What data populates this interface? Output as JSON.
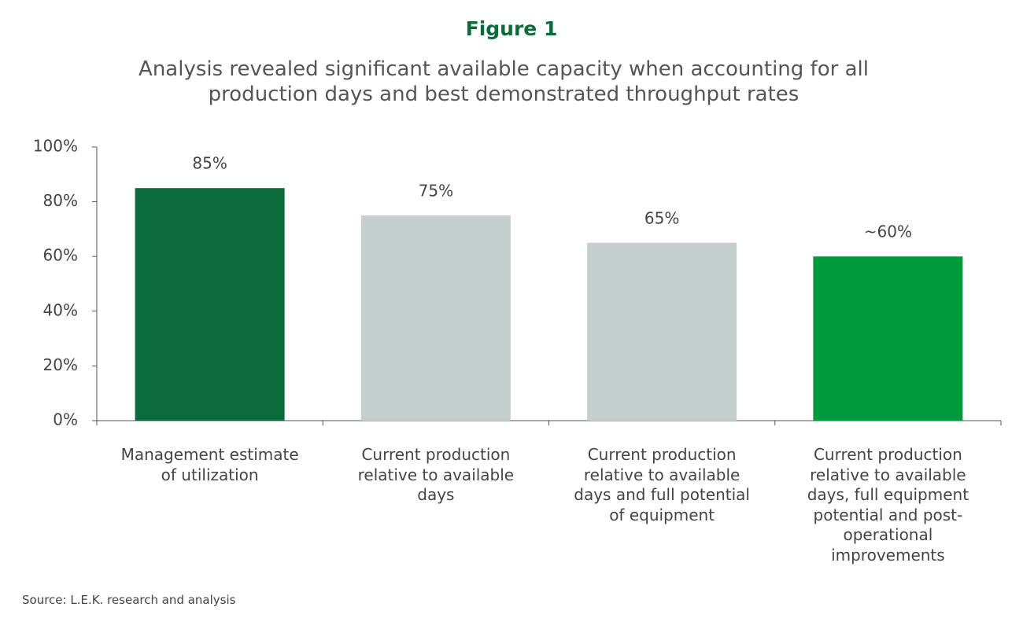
{
  "chart_data": {
    "type": "bar",
    "title": "Figure 1",
    "subtitle": "Analysis revealed significant available capacity when accounting for all production days and best demonstrated throughput rates",
    "categories": [
      "Management estimate of utilization",
      "Current production relative to available days",
      "Current production relative to available days and full potential of equipment",
      "Current production relative to available days, full equipment potential and post-operational improvements"
    ],
    "values": [
      85,
      75,
      65,
      60
    ],
    "value_labels": [
      "85%",
      "75%",
      "65%",
      "~60%"
    ],
    "colors": [
      "#0b6b3a",
      "#c5cfcd",
      "#c5cfcd",
      "#009a3c"
    ],
    "ylim": [
      0,
      100
    ],
    "yticks": [
      {
        "value": 0,
        "label": "0%"
      },
      {
        "value": 20,
        "label": "20%"
      },
      {
        "value": 40,
        "label": "40%"
      },
      {
        "value": 60,
        "label": "60%"
      },
      {
        "value": 80,
        "label": "80%"
      },
      {
        "value": 100,
        "label": "100%"
      }
    ],
    "source": "Source: L.E.K. research and analysis"
  }
}
